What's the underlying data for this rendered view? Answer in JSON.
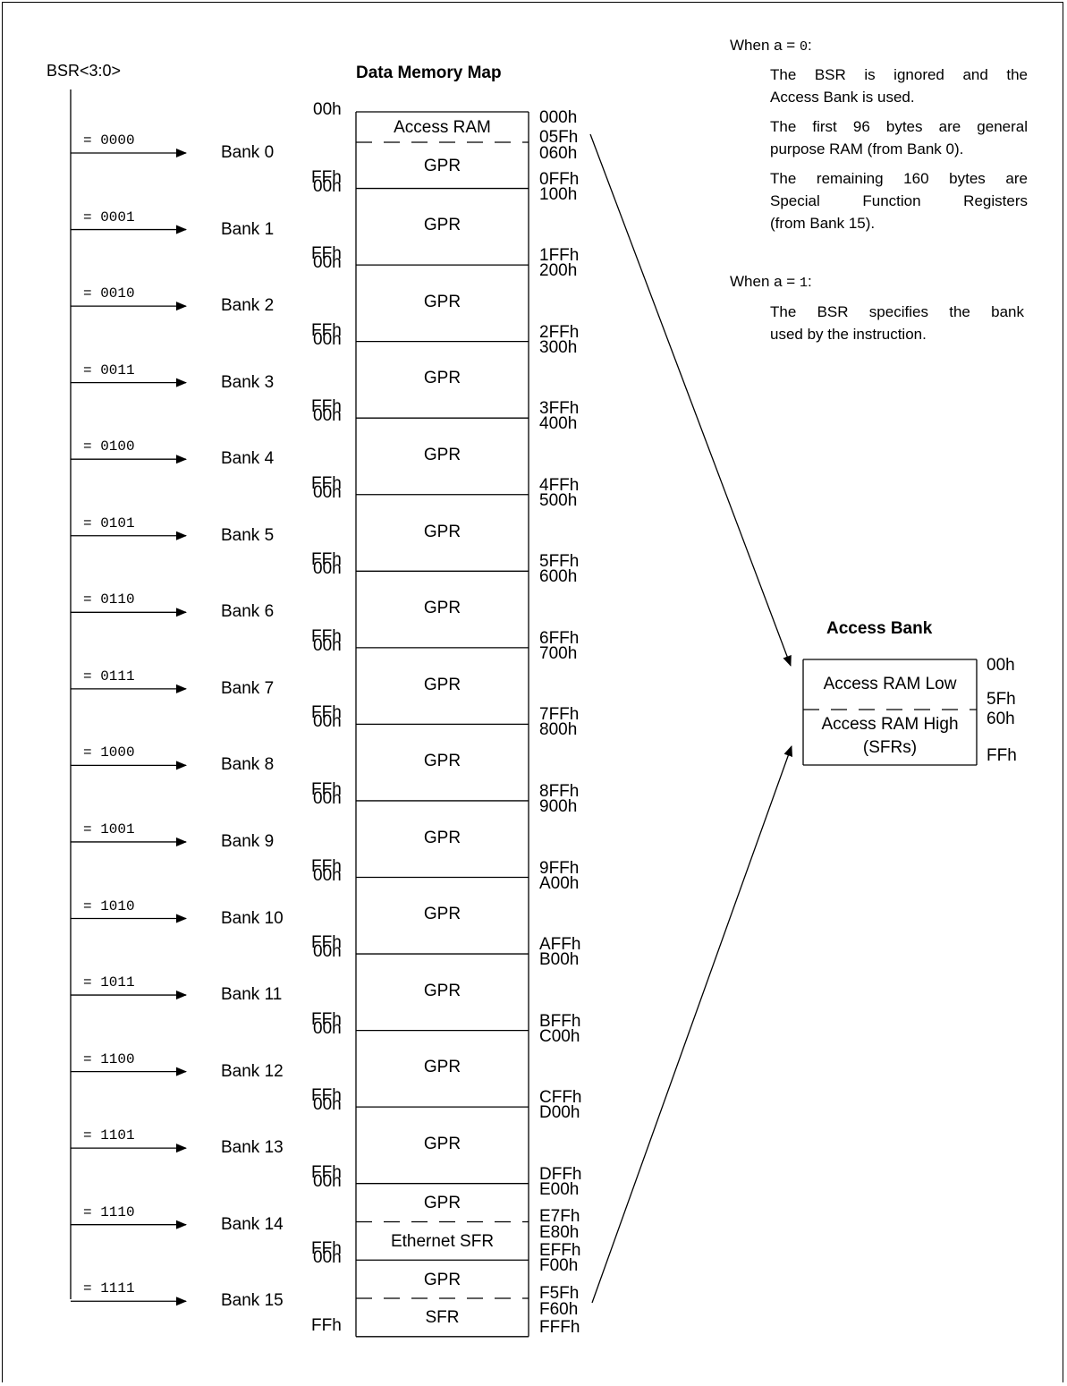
{
  "bsr_label": "BSR<3:0>",
  "memory_map_title": "Data Memory Map",
  "access_bank_title": "Access Bank",
  "bank_start_offset": "00h",
  "bank_end_offset": "FFh",
  "banks": [
    {
      "bsr": "= 0000",
      "name": "Bank 0",
      "regions": [
        "Access RAM",
        "GPR"
      ],
      "addresses": [
        "000h",
        "05Fh",
        "060h",
        "0FFh"
      ]
    },
    {
      "bsr": "= 0001",
      "name": "Bank 1",
      "regions": [
        "GPR"
      ],
      "addresses": [
        "100h",
        "1FFh"
      ]
    },
    {
      "bsr": "= 0010",
      "name": "Bank 2",
      "regions": [
        "GPR"
      ],
      "addresses": [
        "200h",
        "2FFh"
      ]
    },
    {
      "bsr": "= 0011",
      "name": "Bank 3",
      "regions": [
        "GPR"
      ],
      "addresses": [
        "300h",
        "3FFh"
      ]
    },
    {
      "bsr": "= 0100",
      "name": "Bank 4",
      "regions": [
        "GPR"
      ],
      "addresses": [
        "400h",
        "4FFh"
      ]
    },
    {
      "bsr": "= 0101",
      "name": "Bank 5",
      "regions": [
        "GPR"
      ],
      "addresses": [
        "500h",
        "5FFh"
      ]
    },
    {
      "bsr": "= 0110",
      "name": "Bank 6",
      "regions": [
        "GPR"
      ],
      "addresses": [
        "600h",
        "6FFh"
      ]
    },
    {
      "bsr": "= 0111",
      "name": "Bank 7",
      "regions": [
        "GPR"
      ],
      "addresses": [
        "700h",
        "7FFh"
      ]
    },
    {
      "bsr": "= 1000",
      "name": "Bank 8",
      "regions": [
        "GPR"
      ],
      "addresses": [
        "800h",
        "8FFh"
      ]
    },
    {
      "bsr": "= 1001",
      "name": "Bank 9",
      "regions": [
        "GPR"
      ],
      "addresses": [
        "900h",
        "9FFh"
      ]
    },
    {
      "bsr": "= 1010",
      "name": "Bank 10",
      "regions": [
        "GPR"
      ],
      "addresses": [
        "A00h",
        "AFFh"
      ]
    },
    {
      "bsr": "= 1011",
      "name": "Bank 11",
      "regions": [
        "GPR"
      ],
      "addresses": [
        "B00h",
        "BFFh"
      ]
    },
    {
      "bsr": "= 1100",
      "name": "Bank 12",
      "regions": [
        "GPR"
      ],
      "addresses": [
        "C00h",
        "CFFh"
      ]
    },
    {
      "bsr": "= 1101",
      "name": "Bank 13",
      "regions": [
        "GPR"
      ],
      "addresses": [
        "D00h",
        "DFFh"
      ]
    },
    {
      "bsr": "= 1110",
      "name": "Bank 14",
      "regions": [
        "GPR",
        "Ethernet SFR"
      ],
      "addresses": [
        "E00h",
        "E7Fh",
        "E80h",
        "EFFh"
      ]
    },
    {
      "bsr": "= 1111",
      "name": "Bank 15",
      "regions": [
        "GPR",
        "SFR"
      ],
      "addresses": [
        "F00h",
        "F5Fh",
        "F60h",
        "FFFh"
      ]
    }
  ],
  "access_bank": {
    "low_label": "Access RAM Low",
    "high_label": "Access RAM High",
    "high_sublabel": "(SFRs)",
    "addresses": [
      "00h",
      "5Fh",
      "60h",
      "FFh"
    ]
  },
  "notes": {
    "a0_heading_prefix": "When a = ",
    "a0_value": "0",
    "a0_heading_suffix": ":",
    "a0_lines": [
      "The BSR is ignored and the",
      "Access Bank is used.",
      "The first 96 bytes are general",
      "purpose RAM (from Bank 0).",
      "The remaining 160 bytes are",
      "Special Function Registers",
      "(from Bank 15)."
    ],
    "a1_heading_prefix": "When a = ",
    "a1_value": "1",
    "a1_heading_suffix": ":",
    "a1_lines": [
      "The BSR specifies the bank",
      "used by the instruction."
    ]
  }
}
